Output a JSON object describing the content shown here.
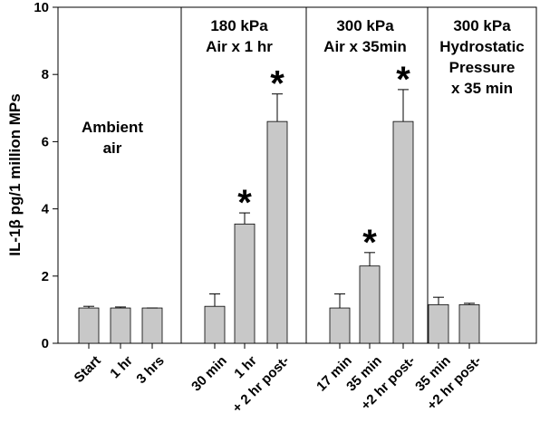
{
  "chart_data": {
    "type": "bar",
    "ylabel": "IL-1β pg/1 million MPs",
    "ylim": [
      0,
      10
    ],
    "yticks": [
      0,
      2,
      4,
      6,
      8,
      10
    ],
    "bar_color": "#c8c8c8",
    "groups": [
      {
        "label_lines": [
          "Ambient",
          "air"
        ],
        "categories": [
          "Start",
          "1 hr",
          "3 hrs"
        ],
        "values": [
          1.05,
          1.05,
          1.05
        ],
        "errors": [
          0.05,
          0.03,
          0.0
        ],
        "significant": [
          false,
          false,
          false
        ]
      },
      {
        "label_lines": [
          "180 kPa",
          "Air x 1 hr"
        ],
        "categories": [
          "30 min",
          "1 hr",
          "+ 2 hr post-"
        ],
        "values": [
          1.1,
          3.55,
          6.6
        ],
        "errors": [
          0.37,
          0.33,
          0.82
        ],
        "significant": [
          false,
          true,
          true
        ]
      },
      {
        "label_lines": [
          "300 kPa",
          "Air x 35min"
        ],
        "categories": [
          "17 min",
          "35 min",
          "+2 hr post-"
        ],
        "values": [
          1.05,
          2.3,
          6.6
        ],
        "errors": [
          0.42,
          0.4,
          0.95
        ],
        "significant": [
          false,
          true,
          true
        ]
      },
      {
        "label_lines": [
          "300 kPa",
          "Hydrostatic",
          "Pressure",
          "x 35 min"
        ],
        "categories": [
          "35 min",
          "+2 hr post-"
        ],
        "values": [
          1.15,
          1.15
        ],
        "errors": [
          0.22,
          0.04
        ],
        "significant": [
          false,
          false
        ]
      }
    ],
    "significance_marker": "*"
  }
}
